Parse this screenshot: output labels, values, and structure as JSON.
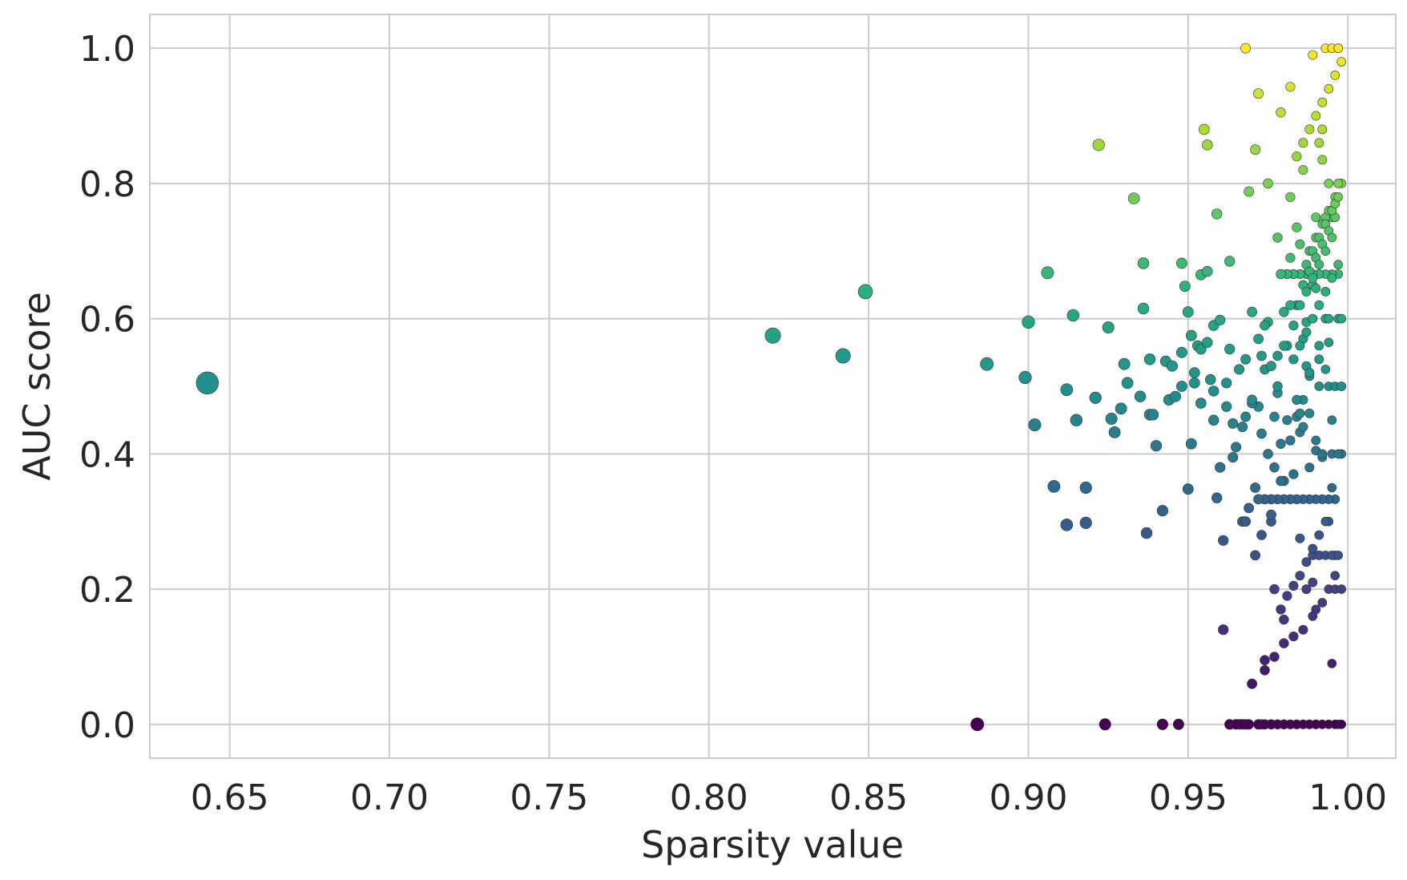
{
  "chart_data": {
    "type": "scatter",
    "title": "",
    "xlabel": "Sparsity value",
    "ylabel": "AUC score",
    "xlim": [
      0.625,
      1.015
    ],
    "ylim": [
      -0.05,
      1.05
    ],
    "xticks": [
      0.65,
      0.7,
      0.75,
      0.8,
      0.85,
      0.9,
      0.95,
      1.0
    ],
    "xtick_labels": [
      "0.65",
      "0.70",
      "0.75",
      "0.80",
      "0.85",
      "0.90",
      "0.95",
      "1.00"
    ],
    "yticks": [
      0.0,
      0.2,
      0.4,
      0.6,
      0.8,
      1.0
    ],
    "ytick_labels": [
      "0.0",
      "0.2",
      "0.4",
      "0.6",
      "0.8",
      "1.0"
    ],
    "grid": true,
    "colormap": "viridis",
    "color_encodes": "y",
    "size_encoding": "larger markers at lower sparsity",
    "series": [
      {
        "x": [
          0.643,
          0.82,
          0.842,
          0.849,
          0.884,
          0.887,
          0.899,
          0.9,
          0.902,
          0.906,
          0.908,
          0.912,
          0.912,
          0.914,
          0.915,
          0.918,
          0.918,
          0.921,
          0.922,
          0.924,
          0.925,
          0.926,
          0.927,
          0.929,
          0.93,
          0.931,
          0.933,
          0.935,
          0.936,
          0.936,
          0.937,
          0.938,
          0.938,
          0.939,
          0.94,
          0.942,
          0.942,
          0.943,
          0.944,
          0.945,
          0.946,
          0.947,
          0.948,
          0.948,
          0.948,
          0.949,
          0.95,
          0.95,
          0.951,
          0.951,
          0.952,
          0.953,
          0.954,
          0.954,
          0.955,
          0.956,
          0.956,
          0.957,
          0.958,
          0.958,
          0.959,
          0.959,
          0.96,
          0.961,
          0.961,
          0.962,
          0.963,
          0.963,
          0.964,
          0.965,
          0.966,
          0.967,
          0.968,
          0.968,
          0.969,
          0.97,
          0.971,
          0.972,
          0.973,
          0.974,
          0.975,
          0.976,
          0.977,
          0.978,
          0.978,
          0.979,
          0.98,
          0.981,
          0.982,
          0.983,
          0.984,
          0.985,
          0.986,
          0.987,
          0.988,
          0.989,
          0.99,
          0.991,
          0.992,
          0.993,
          0.994,
          0.995,
          0.996,
          0.997,
          0.975,
          0.98,
          0.985,
          0.99,
          0.995,
          0.972,
          0.977,
          0.982,
          0.987,
          0.992,
          0.997,
          0.97,
          0.974,
          0.979,
          0.984,
          0.989,
          0.994,
          0.976,
          0.981,
          0.986,
          0.991,
          0.996,
          0.973,
          0.978,
          0.983,
          0.988,
          0.993,
          0.998,
          0.98,
          0.985,
          0.99,
          0.995,
          0.982,
          0.987,
          0.992,
          0.997,
          0.984,
          0.989,
          0.994,
          0.986,
          0.991,
          0.996,
          0.988,
          0.993,
          0.998,
          0.99,
          0.995,
          0.992,
          0.997,
          0.994,
          0.996,
          0.968,
          0.963,
          0.965,
          0.967,
          0.969,
          0.972,
          0.974,
          0.976,
          0.978,
          0.98,
          0.982,
          0.984,
          0.986,
          0.988,
          0.99,
          0.992,
          0.994,
          0.996,
          0.998,
          0.993,
          0.995,
          0.997,
          0.996,
          0.994,
          0.992,
          0.99,
          0.988,
          0.986,
          0.984,
          0.982,
          0.98,
          0.978,
          0.976,
          0.974,
          0.972,
          0.97,
          0.968,
          0.966,
          0.964,
          0.962,
          0.96,
          0.958,
          0.956,
          0.954,
          0.952,
          0.968,
          0.97,
          0.972,
          0.974,
          0.976,
          0.978,
          0.98,
          0.982,
          0.984,
          0.986,
          0.988,
          0.99,
          0.992,
          0.994,
          0.996,
          0.998,
          0.989,
          0.991,
          0.993,
          0.995,
          0.997,
          0.995,
          0.993,
          0.991,
          0.989,
          0.987,
          0.985,
          0.983,
          0.981,
          0.979,
          0.977,
          0.975,
          0.973,
          0.971,
          0.969,
          0.967,
          0.99,
          0.993,
          0.996,
          0.998,
          0.994,
          0.991,
          0.988,
          0.985,
          0.982,
          0.979,
          0.976,
          0.973,
          0.994,
          0.996,
          0.998,
          0.992,
          0.989,
          0.986,
          0.983,
          0.98,
          0.977,
          0.974,
          0.971,
          0.968,
          0.997,
          0.995,
          0.993,
          0.991,
          0.989,
          0.987,
          0.985,
          0.983,
          0.981,
          0.979,
          0.988,
          0.99,
          0.992,
          0.994,
          0.996,
          0.998,
          0.987,
          0.989,
          0.991,
          0.993,
          0.995,
          0.997,
          0.986,
          0.988,
          0.99,
          0.992,
          0.994,
          0.996,
          0.985,
          0.987,
          0.989,
          0.991,
          0.993,
          0.995,
          0.997,
          0.984,
          0.986,
          0.988,
          0.99,
          0.992,
          0.994,
          0.996,
          0.998,
          0.983,
          0.985,
          0.987,
          0.989,
          0.991,
          0.993,
          0.995,
          0.997
        ],
        "y": [
          0.505,
          0.575,
          0.545,
          0.64,
          0.0,
          0.533,
          0.513,
          0.595,
          0.443,
          0.668,
          0.352,
          0.295,
          0.495,
          0.605,
          0.45,
          0.35,
          0.298,
          0.483,
          0.857,
          0.0,
          0.587,
          0.452,
          0.432,
          0.467,
          0.533,
          0.505,
          0.778,
          0.485,
          0.682,
          0.615,
          0.283,
          0.458,
          0.54,
          0.458,
          0.412,
          0.0,
          0.316,
          0.537,
          0.48,
          0.53,
          0.485,
          0.0,
          0.5,
          0.55,
          0.682,
          0.648,
          0.348,
          0.61,
          0.575,
          0.415,
          0.505,
          0.56,
          0.665,
          0.555,
          0.88,
          0.857,
          0.67,
          0.51,
          0.493,
          0.59,
          0.755,
          0.335,
          0.598,
          0.14,
          0.272,
          0.47,
          0.685,
          0.555,
          0.395,
          0.41,
          0.0,
          0.44,
          1.0,
          0.0,
          0.788,
          0.06,
          0.85,
          0.933,
          0.0,
          0.095,
          0.8,
          0.31,
          0.455,
          0.545,
          0.72,
          0.905,
          0.155,
          0.45,
          0.943,
          0.59,
          0.62,
          0.71,
          0.82,
          0.2,
          0.52,
          0.99,
          0.0,
          0.5,
          0.88,
          0.64,
          0.333,
          0.75,
          0.0,
          1.0,
          0.595,
          0.36,
          0.275,
          0.405,
          0.09,
          0.47,
          0.2,
          0.78,
          0.53,
          0.333,
          0.666,
          0.475,
          0.525,
          0.415,
          0.735,
          0.21,
          0.8,
          0.3,
          0.56,
          0.48,
          0.86,
          0.25,
          0.545,
          0.49,
          0.37,
          0.515,
          0.6,
          0.5,
          0.61,
          0.432,
          0.17,
          0.4,
          0.69,
          0.595,
          0.395,
          0.0,
          0.455,
          0.65,
          0.3,
          0.57,
          0.54,
          0.22,
          0.38,
          0.525,
          0.4,
          0.645,
          0.45,
          0.835,
          0.6,
          0.565,
          0.333,
          0.0,
          0.0,
          0.0,
          0.0,
          0.0,
          0.0,
          0.0,
          0.0,
          0.0,
          0.0,
          0.0,
          0.0,
          0.0,
          0.0,
          0.0,
          0.0,
          0.0,
          0.0,
          0.0,
          1.0,
          1.0,
          1.0,
          0.333,
          0.333,
          0.333,
          0.333,
          0.333,
          0.333,
          0.333,
          0.333,
          0.333,
          0.333,
          0.333,
          0.333,
          0.333,
          0.48,
          0.455,
          0.525,
          0.445,
          0.505,
          0.38,
          0.45,
          0.565,
          0.475,
          0.52,
          0.54,
          0.61,
          0.57,
          0.59,
          0.53,
          0.5,
          0.56,
          0.62,
          0.48,
          0.44,
          0.46,
          0.42,
          0.4,
          0.5,
          0.5,
          0.5,
          0.25,
          0.25,
          0.25,
          0.25,
          0.25,
          0.666,
          0.666,
          0.666,
          0.666,
          0.666,
          0.666,
          0.666,
          0.666,
          0.666,
          0.38,
          0.4,
          0.43,
          0.35,
          0.32,
          0.3,
          0.75,
          0.75,
          0.75,
          0.6,
          0.6,
          0.56,
          0.52,
          0.46,
          0.42,
          0.36,
          0.31,
          0.28,
          0.2,
          0.2,
          0.2,
          0.18,
          0.16,
          0.14,
          0.13,
          0.12,
          0.1,
          0.08,
          0.25,
          0.3,
          0.4,
          0.35,
          0.3,
          0.28,
          0.26,
          0.24,
          0.22,
          0.205,
          0.19,
          0.17,
          0.7,
          0.72,
          0.74,
          0.76,
          0.78,
          0.8,
          0.68,
          0.7,
          0.72,
          0.74,
          0.76,
          0.8,
          0.65,
          0.67,
          0.69,
          0.71,
          0.73,
          0.77,
          0.62,
          0.64,
          0.66,
          0.68,
          0.7,
          0.72,
          0.78,
          0.84,
          0.86,
          0.88,
          0.9,
          0.92,
          0.94,
          0.96,
          0.98,
          0.54,
          0.56,
          0.58,
          0.6,
          0.62,
          0.64,
          0.66,
          0.68
        ]
      }
    ]
  }
}
